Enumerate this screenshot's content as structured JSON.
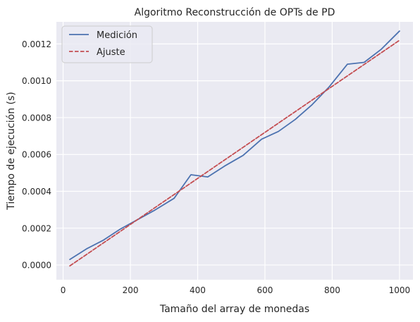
{
  "chart_data": {
    "type": "line",
    "title": "Algoritmo Reconstrucción de OPTs de PD",
    "xlabel": "Tamaño del array de monedas",
    "ylabel": "Tiempo de ejecución (s)",
    "xlim": [
      -20,
      1040
    ],
    "ylim": [
      -8e-05,
      0.00132
    ],
    "xticks": [
      0,
      200,
      400,
      600,
      800,
      1000
    ],
    "xtick_labels": [
      "0",
      "200",
      "400",
      "600",
      "800",
      "1000"
    ],
    "yticks": [
      0.0,
      0.0002,
      0.0004,
      0.0006,
      0.0008,
      0.001,
      0.0012
    ],
    "ytick_labels": [
      "0.0000",
      "0.0002",
      "0.0004",
      "0.0006",
      "0.0008",
      "0.0010",
      "0.0012"
    ],
    "grid": true,
    "legend_position": "upper-left",
    "background_color": "#eaeaf2",
    "series": [
      {
        "name": "Medición",
        "color": "#4c72b0",
        "style": "solid",
        "x": [
          20,
          70,
          120,
          170,
          220,
          270,
          330,
          380,
          430,
          480,
          535,
          590,
          640,
          690,
          740,
          790,
          845,
          895,
          945,
          1000
        ],
        "y": [
          3e-05,
          8.8e-05,
          0.000135,
          0.000195,
          0.000245,
          0.000295,
          0.000362,
          0.00049,
          0.000478,
          0.000537,
          0.000595,
          0.000683,
          0.000725,
          0.00079,
          0.00087,
          0.000965,
          0.00109,
          0.0011,
          0.00117,
          0.00127
        ]
      },
      {
        "name": "Ajuste",
        "color": "#c44e52",
        "style": "dashed",
        "x": [
          20,
          1000
        ],
        "y": [
          -5e-06,
          0.00122
        ]
      }
    ]
  }
}
